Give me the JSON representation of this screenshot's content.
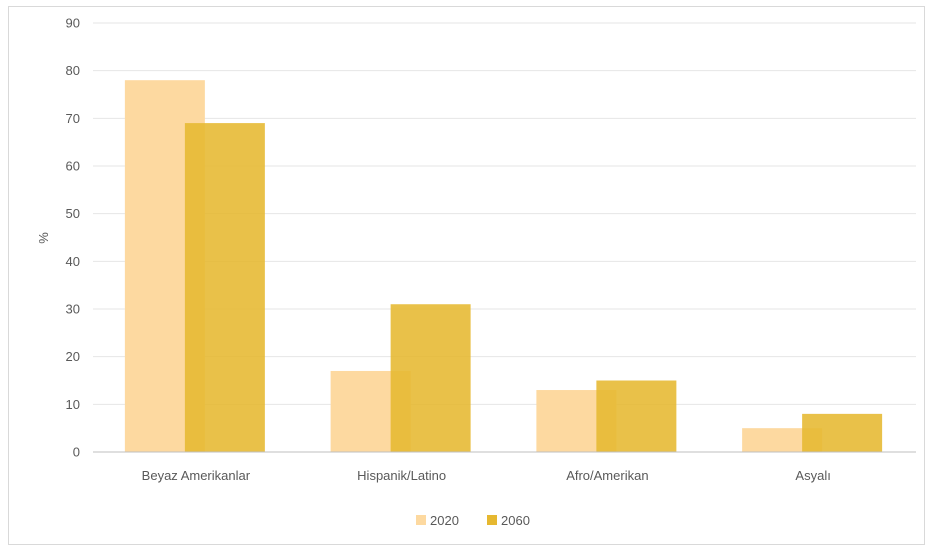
{
  "chart_data": {
    "type": "bar",
    "categories": [
      "Beyaz Amerikanlar",
      "Hispanik/Latino",
      "Afro/Amerikan",
      "Asyalı"
    ],
    "series": [
      {
        "name": "2020",
        "values": [
          78,
          17,
          13,
          5
        ],
        "color": "#fdd9a0"
      },
      {
        "name": "2060",
        "values": [
          69,
          31,
          15,
          8
        ],
        "color": "#e6b830"
      }
    ],
    "ylabel": "%",
    "ylim": [
      0,
      90
    ],
    "yticks": [
      0,
      10,
      20,
      30,
      40,
      50,
      60,
      70,
      80,
      90
    ],
    "grid": true,
    "legend_position": "bottom",
    "bar_layout": "overlapping"
  }
}
